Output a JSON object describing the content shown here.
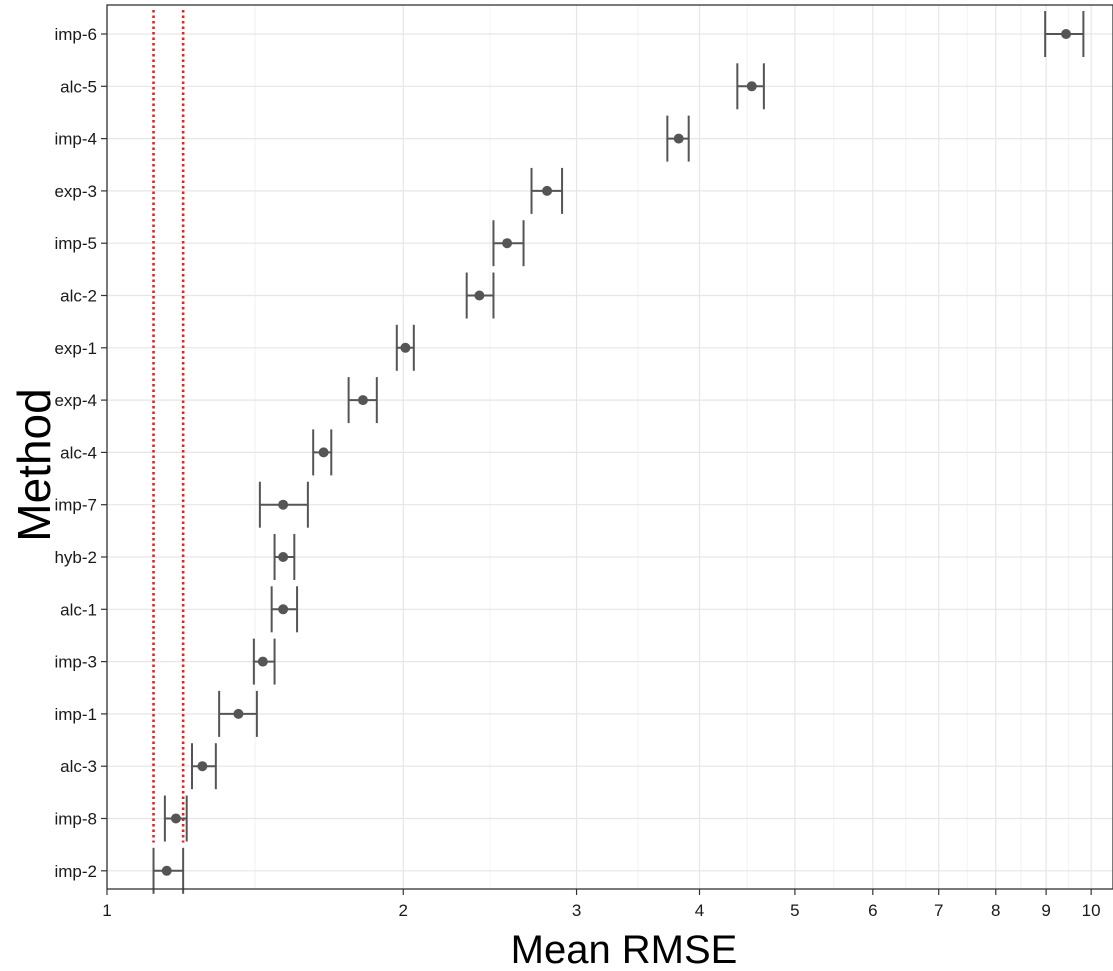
{
  "chart_data": {
    "type": "scatter",
    "subtype": "dot-with-error-bars",
    "title": "",
    "xlabel": "Mean RMSE",
    "ylabel": "Method",
    "x_scale": "log",
    "xlim": [
      1,
      10.5
    ],
    "x_ticks": [
      1,
      2,
      3,
      4,
      5,
      6,
      7,
      8,
      9,
      10
    ],
    "x_tick_labels": [
      "1",
      "2",
      "3",
      "4",
      "5",
      "6",
      "7",
      "8",
      "9",
      "10"
    ],
    "grid": true,
    "background": "#ffffff",
    "point_color": "#555555",
    "errorbar_color": "#555555",
    "reference_line_color": "#e8231f",
    "reference_lines": [
      {
        "x": 1.115,
        "style": "dotted",
        "ymin": "imp-8",
        "ymax": "imp-6"
      },
      {
        "x": 1.195,
        "style": "dotted",
        "ymin": "imp-8",
        "ymax": "imp-6"
      }
    ],
    "points": [
      {
        "method": "imp-6",
        "mean": 9.43,
        "lower": 8.98,
        "upper": 9.82
      },
      {
        "method": "alc-5",
        "mean": 4.52,
        "lower": 4.37,
        "upper": 4.65
      },
      {
        "method": "imp-4",
        "mean": 3.81,
        "lower": 3.71,
        "upper": 3.9
      },
      {
        "method": "exp-3",
        "mean": 2.8,
        "lower": 2.7,
        "upper": 2.9
      },
      {
        "method": "imp-5",
        "mean": 2.55,
        "lower": 2.47,
        "upper": 2.65
      },
      {
        "method": "alc-2",
        "mean": 2.39,
        "lower": 2.32,
        "upper": 2.47
      },
      {
        "method": "exp-1",
        "mean": 2.01,
        "lower": 1.97,
        "upper": 2.05
      },
      {
        "method": "exp-4",
        "mean": 1.82,
        "lower": 1.76,
        "upper": 1.88
      },
      {
        "method": "alc-4",
        "mean": 1.66,
        "lower": 1.62,
        "upper": 1.69
      },
      {
        "method": "imp-7",
        "mean": 1.51,
        "lower": 1.43,
        "upper": 1.6
      },
      {
        "method": "hyb-2",
        "mean": 1.51,
        "lower": 1.48,
        "upper": 1.55
      },
      {
        "method": "alc-1",
        "mean": 1.51,
        "lower": 1.47,
        "upper": 1.56
      },
      {
        "method": "imp-3",
        "mean": 1.44,
        "lower": 1.41,
        "upper": 1.48
      },
      {
        "method": "imp-1",
        "mean": 1.36,
        "lower": 1.3,
        "upper": 1.42
      },
      {
        "method": "alc-3",
        "mean": 1.25,
        "lower": 1.22,
        "upper": 1.29
      },
      {
        "method": "imp-8",
        "mean": 1.175,
        "lower": 1.145,
        "upper": 1.205
      },
      {
        "method": "imp-2",
        "mean": 1.15,
        "lower": 1.115,
        "upper": 1.195
      }
    ]
  }
}
